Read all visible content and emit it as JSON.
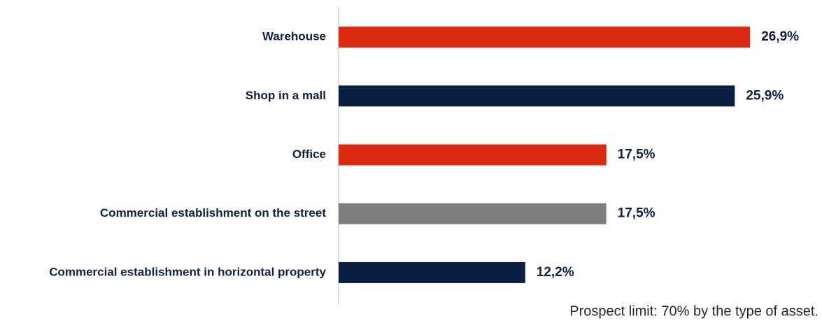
{
  "chart_data": {
    "type": "barh",
    "categories": [
      "Warehouse",
      "Shop in a mall",
      "Office",
      "Commercial establishment on the street",
      "Commercial establishment in horizontal property"
    ],
    "values": [
      26.9,
      25.9,
      17.5,
      17.5,
      12.2
    ],
    "value_labels": [
      "26,9%",
      "25,9%",
      "17,5%",
      "17,5%",
      "12,2%"
    ],
    "colors": [
      "#dc2a12",
      "#0b1f44",
      "#dc2a12",
      "#7f7f7f",
      "#0b1f44"
    ],
    "xlim": [
      0,
      30
    ],
    "annotation": "Prospect limit: 70% by the type of asset."
  }
}
